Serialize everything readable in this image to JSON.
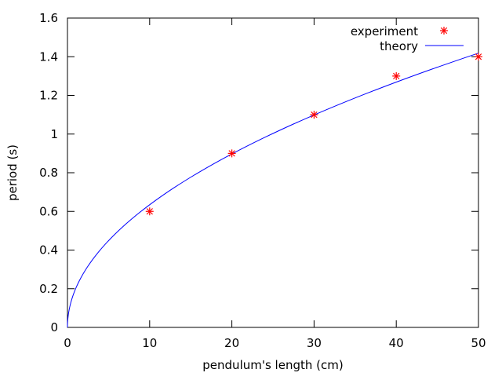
{
  "chart_data": {
    "type": "scatter",
    "title": "",
    "xlabel": "pendulum's length (cm)",
    "ylabel": "period (s)",
    "xlim": [
      0,
      50
    ],
    "ylim": [
      0,
      1.6
    ],
    "xticks": [
      "0",
      "10",
      "20",
      "30",
      "40",
      "50"
    ],
    "yticks": [
      "0",
      "0.2",
      "0.4",
      "0.6",
      "0.8",
      "1",
      "1.2",
      "1.4",
      "1.6"
    ],
    "grid": false,
    "legend_position": "top-right",
    "series": [
      {
        "name": "experiment",
        "type": "scatter",
        "marker": "asterisk",
        "color": "#ff0000",
        "x": [
          10,
          20,
          30,
          40,
          50
        ],
        "y": [
          0.6,
          0.9,
          1.1,
          1.3,
          1.4
        ]
      },
      {
        "name": "theory",
        "type": "line",
        "color": "#0000ff",
        "function": "2*pi*sqrt(x/100/9.81)"
      }
    ]
  }
}
